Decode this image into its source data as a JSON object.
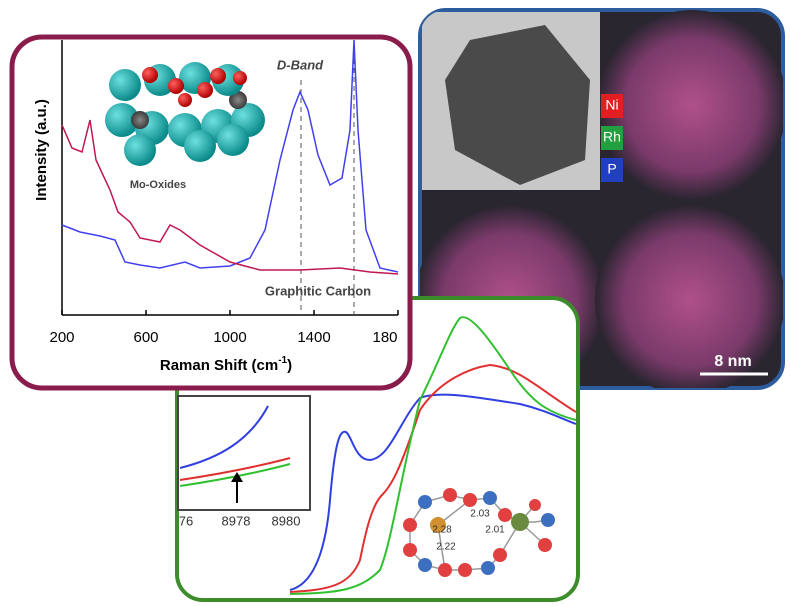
{
  "raman": {
    "y_label": "Intensity (a.u.)",
    "x_label": "Raman Shift (cm",
    "x_label_sup": "-1",
    "x_label_end": ")",
    "annotations": [
      "D-Band",
      "Mo-Oxides",
      "Graphitic Carbon"
    ],
    "x_ticks": [
      "200",
      "600",
      "1000",
      "1400",
      "180"
    ]
  },
  "tem": {
    "legend": [
      "Ni",
      "Rh",
      "P"
    ],
    "scale_bar": "8 nm"
  },
  "xas": {
    "inset_ticks": [
      "76",
      "8978",
      "8980"
    ],
    "bond_lengths": [
      "2.03",
      "2.28",
      "2.01",
      "2.22"
    ]
  }
}
